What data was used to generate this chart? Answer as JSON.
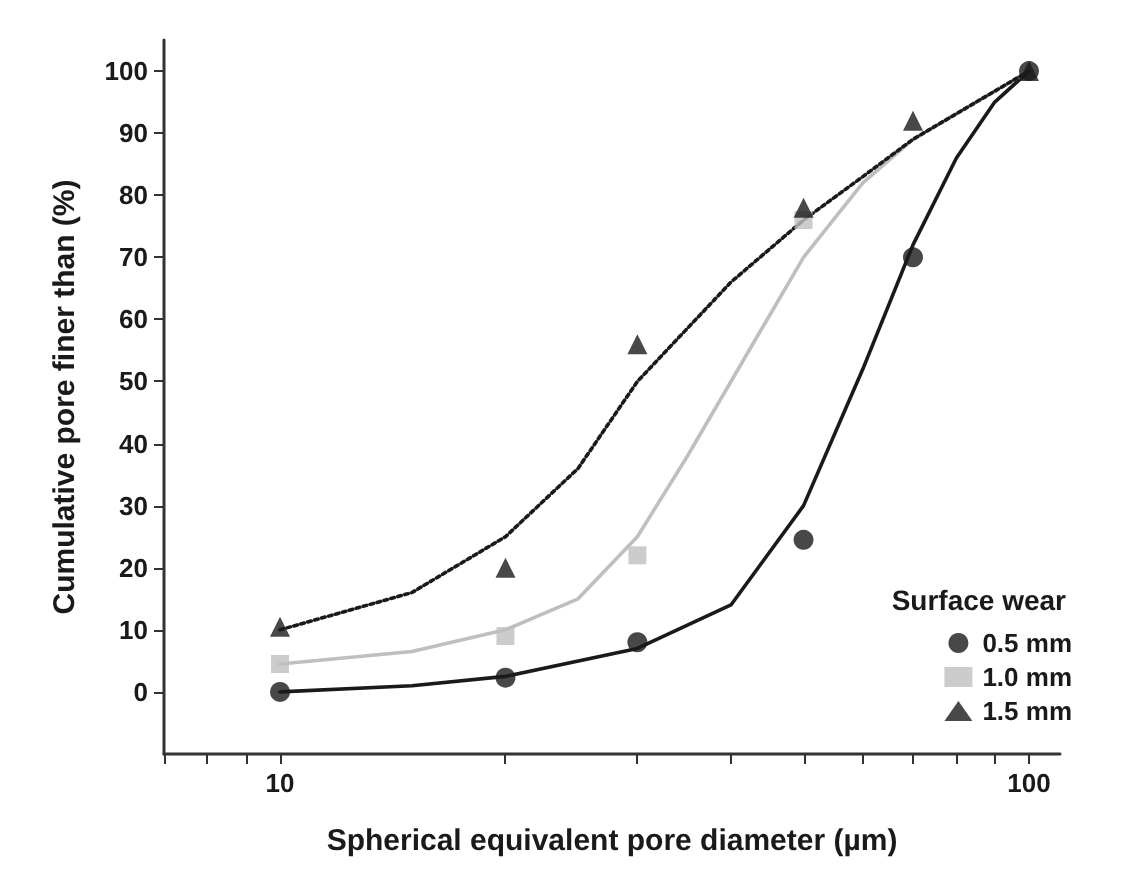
{
  "chart_data": {
    "type": "scatter",
    "xlabel": "Spherical equivalent pore diameter (µm)",
    "ylabel": "Cumulative pore finer than (%)",
    "legend_title": "Surface wear",
    "legend": "bottom right",
    "grid": false,
    "log": "x",
    "xlim": [
      7,
      110
    ],
    "xticks": [
      {
        "value": 7,
        "label": null
      },
      {
        "value": 8,
        "label": null
      },
      {
        "value": 9,
        "label": null
      },
      10,
      {
        "value": 20,
        "label": null
      },
      {
        "value": 30,
        "label": null
      },
      {
        "value": 40,
        "label": null
      },
      {
        "value": 50,
        "label": null
      },
      {
        "value": 60,
        "label": null
      },
      {
        "value": 70,
        "label": null
      },
      {
        "value": 80,
        "label": null
      },
      {
        "value": 90,
        "label": null
      },
      100
    ],
    "ylim": [
      -10,
      105
    ],
    "yticks": [
      0,
      10,
      20,
      30,
      40,
      50,
      60,
      70,
      80,
      90,
      100
    ],
    "series": [
      {
        "name": "0.5 mm",
        "marker": "circle",
        "color": "#1a1a1a",
        "x": [
          10,
          20,
          30,
          50,
          70,
          100
        ],
        "values": [
          0,
          2.3,
          8,
          24.5,
          70,
          100
        ]
      },
      {
        "name": "1.0 mm",
        "marker": "square",
        "color": "#bfbfbf",
        "x": [
          10,
          20,
          30,
          50
        ],
        "values": [
          4.5,
          9,
          22,
          76
        ]
      },
      {
        "name": "1.5 mm",
        "marker": "triangle",
        "color": "#1a1a1a",
        "x": [
          10,
          20,
          30,
          50,
          70,
          100
        ],
        "values": [
          10.5,
          20,
          56,
          78,
          92,
          100
        ]
      },
      {
        "type": "line",
        "marker": "none",
        "line_style": "solid",
        "color": "#1a1a1a",
        "x": [
          10,
          15,
          20,
          30,
          40,
          50,
          60,
          70,
          80,
          90,
          100
        ],
        "values": [
          0,
          1,
          2.5,
          7,
          14,
          30,
          52,
          72,
          86,
          95,
          100
        ]
      },
      {
        "type": "line",
        "marker": "none",
        "line_style": "solid",
        "color": "#bfbfbf",
        "x": [
          10,
          15,
          20,
          25,
          30,
          35,
          40,
          50,
          60,
          70,
          85,
          100
        ],
        "values": [
          4.5,
          6.5,
          10,
          15,
          25,
          38,
          50,
          70,
          82,
          89,
          95,
          100
        ]
      },
      {
        "type": "line",
        "marker": "none",
        "line_style": "dotted",
        "color": "#1a1a1a",
        "x": [
          10,
          15,
          20,
          25,
          30,
          40,
          50,
          60,
          70,
          85,
          100
        ],
        "values": [
          10,
          16,
          25,
          36,
          50,
          66,
          76,
          83,
          89,
          95,
          100
        ]
      }
    ]
  }
}
